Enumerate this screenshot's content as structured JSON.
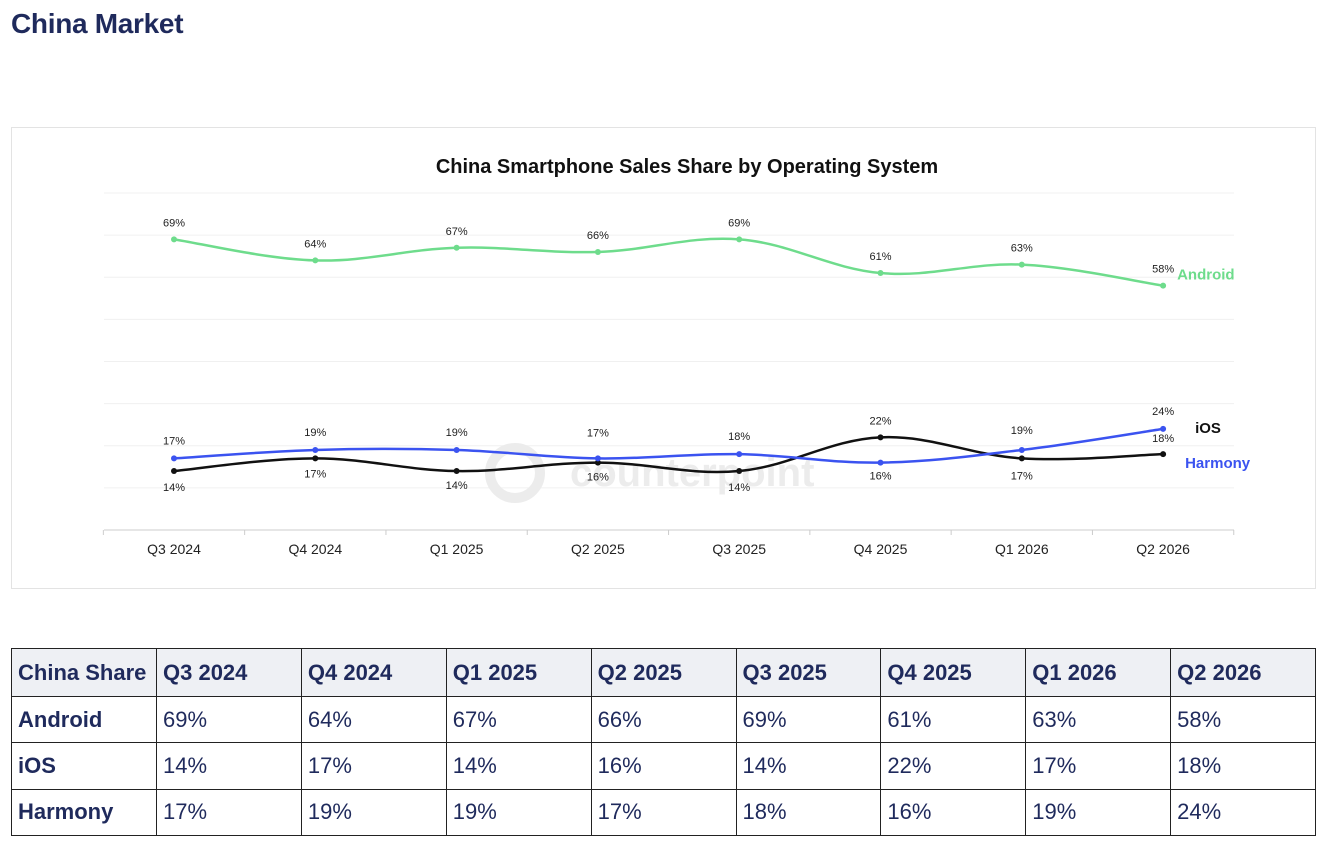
{
  "page": {
    "title": "China Market"
  },
  "watermark": "counterpoint",
  "chart_data": {
    "type": "line",
    "title": "China Smartphone Sales Share by Operating System",
    "categories": [
      "Q3 2024",
      "Q4 2024",
      "Q1 2025",
      "Q2 2025",
      "Q3 2025",
      "Q4 2025",
      "Q1 2026",
      "Q2 2026"
    ],
    "ylim": [
      0,
      80
    ],
    "grid": true,
    "legend": "inline-right",
    "series": [
      {
        "name": "Android",
        "color": "#6edc8c",
        "values": [
          69,
          64,
          67,
          66,
          69,
          61,
          63,
          58
        ],
        "labels": [
          "69%",
          "64%",
          "67%",
          "66%",
          "69%",
          "61%",
          "63%",
          "58%"
        ]
      },
      {
        "name": "iOS",
        "color": "#111111",
        "values": [
          14,
          17,
          14,
          16,
          14,
          22,
          17,
          18
        ],
        "labels": [
          "14%",
          "17%",
          "14%",
          "16%",
          "14%",
          "22%",
          "17%",
          "18%"
        ]
      },
      {
        "name": "Harmony",
        "color": "#3b53f0",
        "values": [
          17,
          19,
          19,
          17,
          18,
          16,
          19,
          24
        ],
        "labels": [
          "17%",
          "19%",
          "19%",
          "17%",
          "18%",
          "16%",
          "19%",
          "24%"
        ]
      }
    ]
  },
  "table": {
    "header": [
      "China Share",
      "Q3 2024",
      "Q4 2024",
      "Q1 2025",
      "Q2 2025",
      "Q3 2025",
      "Q4 2025",
      "Q1 2026",
      "Q2 2026"
    ],
    "rows": [
      {
        "label": "Android",
        "cells": [
          "69%",
          "64%",
          "67%",
          "66%",
          "69%",
          "61%",
          "63%",
          "58%"
        ]
      },
      {
        "label": "iOS",
        "cells": [
          "14%",
          "17%",
          "14%",
          "16%",
          "14%",
          "22%",
          "17%",
          "18%"
        ]
      },
      {
        "label": "Harmony",
        "cells": [
          "17%",
          "19%",
          "19%",
          "17%",
          "18%",
          "16%",
          "19%",
          "24%"
        ]
      }
    ]
  }
}
